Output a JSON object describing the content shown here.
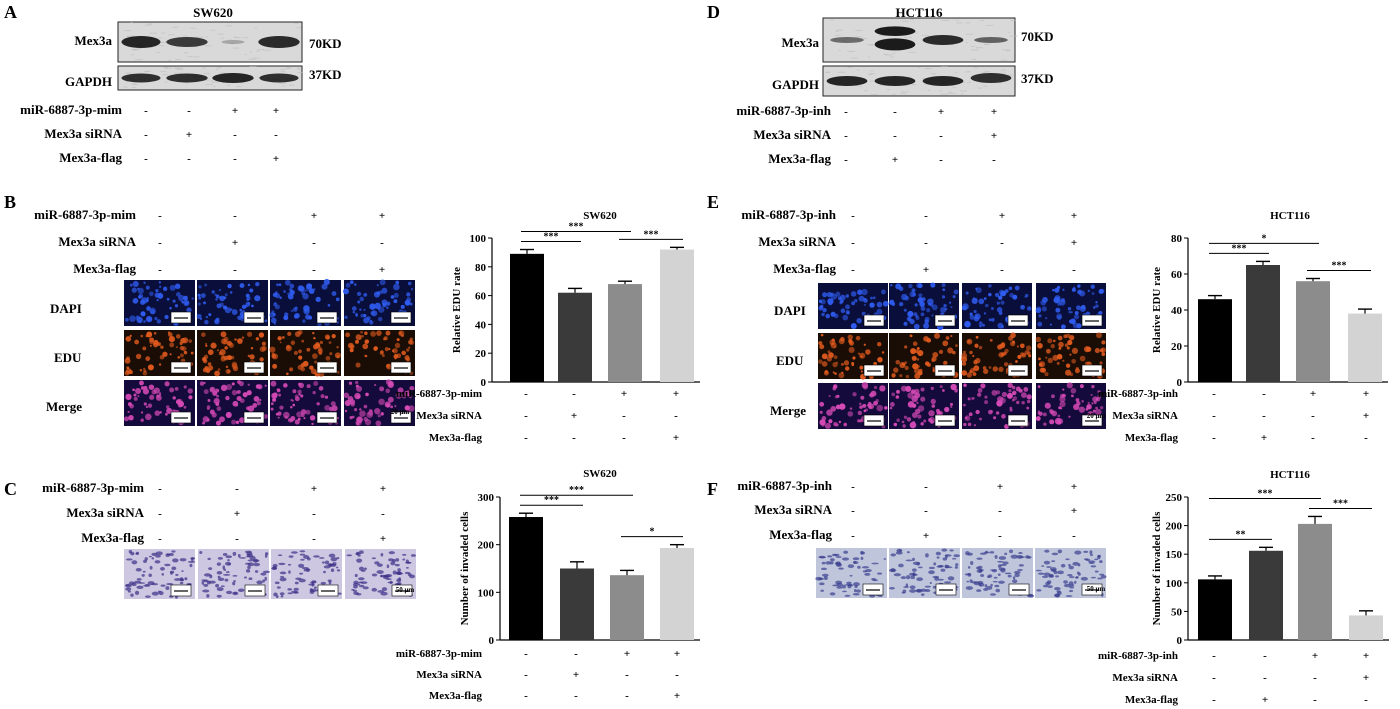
{
  "panels": {
    "A": {
      "label": "A",
      "cell_line": "SW620",
      "bands": [
        {
          "name": "Mex3a",
          "size": "70KD"
        },
        {
          "name": "GAPDH",
          "size": "37KD"
        }
      ],
      "conditions": [
        {
          "label": "miR-6887-3p-mim",
          "signs": [
            "-",
            "-",
            "+",
            "+"
          ]
        },
        {
          "label": "Mex3a siRNA",
          "signs": [
            "-",
            "+",
            "-",
            "-"
          ]
        },
        {
          "label": "Mex3a-flag",
          "signs": [
            "-",
            "-",
            "-",
            "+"
          ]
        }
      ]
    },
    "D": {
      "label": "D",
      "cell_line": "HCT116",
      "bands": [
        {
          "name": "Mex3a",
          "size": "70KD"
        },
        {
          "name": "GAPDH",
          "size": "37KD"
        }
      ],
      "conditions": [
        {
          "label": "miR-6887-3p-inh",
          "signs": [
            "-",
            "-",
            "+",
            "+"
          ]
        },
        {
          "label": "Mex3a siRNA",
          "signs": [
            "-",
            "-",
            "-",
            "+"
          ]
        },
        {
          "label": "Mex3a-flag",
          "signs": [
            "-",
            "+",
            "-",
            "-"
          ]
        }
      ]
    },
    "B": {
      "label": "B",
      "conditions": [
        {
          "label": "miR-6887-3p-mim",
          "signs": [
            "-",
            "-",
            "+",
            "+"
          ]
        },
        {
          "label": "Mex3a siRNA",
          "signs": [
            "-",
            "+",
            "-",
            "-"
          ]
        },
        {
          "label": "Mex3a-flag",
          "signs": [
            "-",
            "-",
            "-",
            "+"
          ]
        }
      ],
      "rows": [
        "DAPI",
        "EDU",
        "Merge"
      ],
      "scale_bar": "20 μm"
    },
    "E": {
      "label": "E",
      "conditions": [
        {
          "label": "miR-6887-3p-inh",
          "signs": [
            "-",
            "-",
            "+",
            "+"
          ]
        },
        {
          "label": "Mex3a siRNA",
          "signs": [
            "-",
            "-",
            "-",
            "+"
          ]
        },
        {
          "label": "Mex3a-flag",
          "signs": [
            "-",
            "+",
            "-",
            "-"
          ]
        }
      ],
      "rows": [
        "DAPI",
        "EDU",
        "Merge"
      ],
      "scale_bar": "20 μm"
    },
    "C": {
      "label": "C",
      "conditions": [
        {
          "label": "miR-6887-3p-mim",
          "signs": [
            "-",
            "-",
            "+",
            "+"
          ]
        },
        {
          "label": "Mex3a siRNA",
          "signs": [
            "-",
            "+",
            "-",
            "-"
          ]
        },
        {
          "label": "Mex3a-flag",
          "signs": [
            "-",
            "-",
            "-",
            "+"
          ]
        }
      ],
      "scale_bar": "50 μm"
    },
    "F": {
      "label": "F",
      "conditions": [
        {
          "label": "miR-6887-3p-inh",
          "signs": [
            "-",
            "-",
            "+",
            "+"
          ]
        },
        {
          "label": "Mex3a siRNA",
          "signs": [
            "-",
            "-",
            "-",
            "+"
          ]
        },
        {
          "label": "Mex3a-flag",
          "signs": [
            "-",
            "+",
            "-",
            "-"
          ]
        }
      ],
      "scale_bar": "50 μm"
    }
  },
  "colors": {
    "bar_1": "#000000",
    "bar_2": "#3a3a3a",
    "bar_3": "#8c8c8c",
    "bar_4": "#d3d3d3",
    "dapi_bg": "#0a0e3a",
    "dapi_cell": "#2f5cf0",
    "edu_bg": "#1a0d05",
    "edu_cell": "#e05a1e",
    "merge_bg": "#150a3c",
    "merge_cell": "#d64ab6",
    "invasion_bg": "#cdc7e2",
    "invasion_cell": "#3b2f86",
    "invasion_bg_f": "#bfc6dc",
    "invasion_cell_f": "#3b3f8e"
  },
  "chart_data": [
    {
      "type": "bar",
      "panel": "B",
      "title": "SW620",
      "ylabel": "Relative EDU rate",
      "ylim": [
        0,
        100
      ],
      "yticks": [
        0,
        20,
        40,
        60,
        80,
        100
      ],
      "values": [
        89,
        62,
        68,
        92
      ],
      "errors": [
        3,
        3,
        2,
        1.5
      ],
      "conditions": [
        {
          "label": "miR-6887-3p-mim",
          "signs": [
            "-",
            "-",
            "+",
            "+"
          ]
        },
        {
          "label": "Mex3a siRNA",
          "signs": [
            "-",
            "+",
            "-",
            "-"
          ]
        },
        {
          "label": "Mex3a-flag",
          "signs": [
            "-",
            "-",
            "-",
            "+"
          ]
        }
      ],
      "significance": [
        {
          "from": 0,
          "to": 1,
          "label": "***"
        },
        {
          "from": 0,
          "to": 2,
          "label": "***"
        },
        {
          "from": 2,
          "to": 3,
          "label": "***"
        }
      ]
    },
    {
      "type": "bar",
      "panel": "E",
      "title": "HCT116",
      "ylabel": "Relative EDU rate",
      "ylim": [
        0,
        80
      ],
      "yticks": [
        0,
        20,
        40,
        60,
        80
      ],
      "values": [
        46,
        65,
        56,
        38
      ],
      "errors": [
        2,
        2,
        1.5,
        2.5
      ],
      "conditions": [
        {
          "label": "miR-6887-3p-inh",
          "signs": [
            "-",
            "-",
            "+",
            "+"
          ]
        },
        {
          "label": "Mex3a siRNA",
          "signs": [
            "-",
            "-",
            "-",
            "+"
          ]
        },
        {
          "label": "Mex3a-flag",
          "signs": [
            "-",
            "+",
            "-",
            "-"
          ]
        }
      ],
      "significance": [
        {
          "from": 0,
          "to": 1,
          "label": "***"
        },
        {
          "from": 0,
          "to": 2,
          "label": "*"
        },
        {
          "from": 2,
          "to": 3,
          "label": "***"
        }
      ]
    },
    {
      "type": "bar",
      "panel": "C",
      "title": "SW620",
      "ylabel": "Number of invaded cells",
      "ylim": [
        0,
        300
      ],
      "yticks": [
        0,
        100,
        200,
        300
      ],
      "values": [
        258,
        150,
        136,
        193
      ],
      "errors": [
        8,
        14,
        10,
        7
      ],
      "conditions": [
        {
          "label": "miR-6887-3p-mim",
          "signs": [
            "-",
            "-",
            "+",
            "+"
          ]
        },
        {
          "label": "Mex3a siRNA",
          "signs": [
            "-",
            "+",
            "-",
            "-"
          ]
        },
        {
          "label": "Mex3a-flag",
          "signs": [
            "-",
            "-",
            "-",
            "+"
          ]
        }
      ],
      "significance": [
        {
          "from": 0,
          "to": 1,
          "label": "***"
        },
        {
          "from": 0,
          "to": 2,
          "label": "***"
        },
        {
          "from": 2,
          "to": 3,
          "label": "*"
        }
      ]
    },
    {
      "type": "bar",
      "panel": "F",
      "title": "HCT116",
      "ylabel": "Number of invaded cells",
      "ylim": [
        0,
        250
      ],
      "yticks": [
        0,
        50,
        100,
        150,
        200,
        250
      ],
      "values": [
        106,
        156,
        203,
        43
      ],
      "errors": [
        6,
        6,
        13,
        8
      ],
      "conditions": [
        {
          "label": "miR-6887-3p-inh",
          "signs": [
            "-",
            "-",
            "+",
            "+"
          ]
        },
        {
          "label": "Mex3a siRNA",
          "signs": [
            "-",
            "-",
            "-",
            "+"
          ]
        },
        {
          "label": "Mex3a-flag",
          "signs": [
            "-",
            "+",
            "-",
            "-"
          ]
        }
      ],
      "significance": [
        {
          "from": 0,
          "to": 1,
          "label": "**"
        },
        {
          "from": 0,
          "to": 2,
          "label": "***"
        },
        {
          "from": 2,
          "to": 3,
          "label": "***"
        }
      ]
    }
  ]
}
